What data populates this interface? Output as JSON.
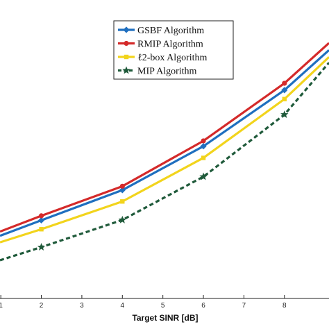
{
  "chart_data": {
    "type": "line",
    "xlabel": "Target SINR [dB]",
    "ylabel": "",
    "title": "",
    "x_ticks": [
      1,
      2,
      3,
      4,
      5,
      6,
      7,
      8
    ],
    "xlim": [
      0.98,
      9.1
    ],
    "ylim": [
      0,
      1
    ],
    "grid": false,
    "legend_position": "top-center",
    "series": [
      {
        "name": "GSBF Algorithm",
        "color": "#1f6fbf",
        "marker": "diamond",
        "dash": "solid",
        "x": [
          0.98,
          2,
          4,
          6,
          8,
          9.1
        ],
        "y": [
          0.21,
          0.262,
          0.363,
          0.51,
          0.698,
          0.832
        ]
      },
      {
        "name": "RMIP Algorithm",
        "color": "#d42a2a",
        "marker": "circle",
        "dash": "solid",
        "x": [
          0.98,
          2,
          4,
          6,
          8,
          9.1
        ],
        "y": [
          0.224,
          0.277,
          0.376,
          0.528,
          0.721,
          0.856
        ]
      },
      {
        "name": "ℓ2-box Algorithm",
        "color": "#f2d41c",
        "marker": "square",
        "dash": "solid",
        "x": [
          0.98,
          2,
          4,
          6,
          8,
          9.1
        ],
        "y": [
          0.188,
          0.232,
          0.325,
          0.471,
          0.668,
          0.809
        ]
      },
      {
        "name": "MIP Algorithm",
        "color": "#1f5a3a",
        "marker": "star",
        "dash": "dashed",
        "x": [
          0.98,
          2,
          4,
          6,
          8,
          9.1
        ],
        "y": [
          0.128,
          0.172,
          0.263,
          0.408,
          0.616,
          0.79
        ]
      }
    ]
  }
}
